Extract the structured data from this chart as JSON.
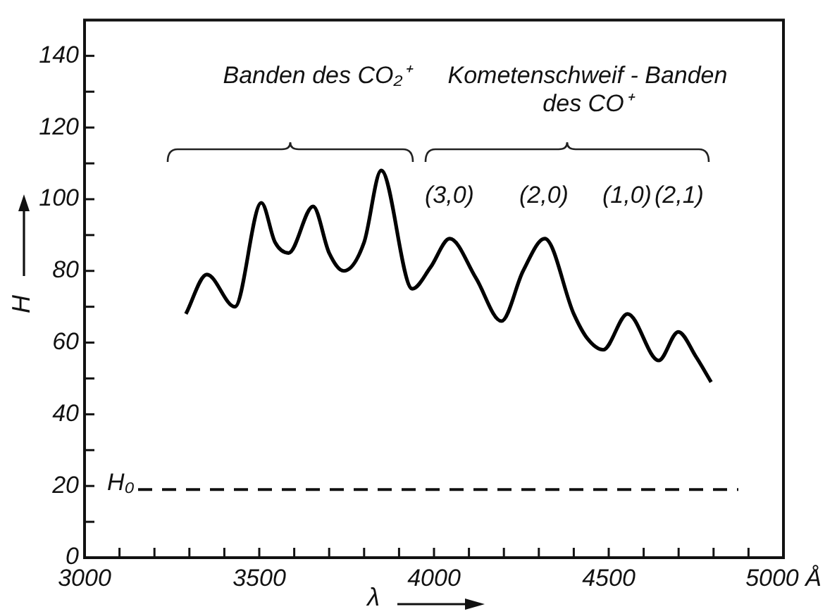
{
  "chart_data": {
    "type": "line",
    "xlabel": "λ",
    "ylabel": "H",
    "x": [
      3290,
      3350,
      3430,
      3506,
      3545,
      3584,
      3654,
      3700,
      3742,
      3800,
      3849,
      3938,
      3990,
      4045,
      4120,
      4193,
      4255,
      4317,
      4400,
      4440,
      4484,
      4554,
      4643,
      4699,
      4750,
      4793
    ],
    "values": [
      68,
      79,
      70,
      99,
      88,
      85,
      98,
      85,
      80,
      88,
      108,
      75,
      81,
      89,
      78,
      66,
      80,
      89,
      68,
      61,
      58,
      68,
      55,
      63,
      56,
      49
    ],
    "color": "#000000",
    "xlim": [
      3000,
      5000
    ],
    "xticks": [
      3000,
      {
        "value": 3100,
        "label": null
      },
      {
        "value": 3200,
        "label": null
      },
      {
        "value": 3300,
        "label": null
      },
      {
        "value": 3400,
        "label": null
      },
      3500,
      {
        "value": 3600,
        "label": null
      },
      {
        "value": 3700,
        "label": null
      },
      {
        "value": 3800,
        "label": null
      },
      {
        "value": 3900,
        "label": null
      },
      4000,
      {
        "value": 4100,
        "label": null
      },
      {
        "value": 4200,
        "label": null
      },
      {
        "value": 4300,
        "label": null
      },
      {
        "value": 4400,
        "label": null
      },
      4500,
      {
        "value": 4600,
        "label": null
      },
      {
        "value": 4700,
        "label": null
      },
      {
        "value": 4800,
        "label": null
      },
      {
        "value": 4900,
        "label": null
      },
      {
        "value": 5000,
        "label": "5000 Å"
      }
    ],
    "ylim": [
      0,
      150
    ],
    "yticks": [
      0,
      {
        "value": 10,
        "label": null
      },
      20,
      {
        "value": 30,
        "label": null
      },
      40,
      {
        "value": 50,
        "label": null
      },
      60,
      {
        "value": 70,
        "label": null
      },
      80,
      {
        "value": 90,
        "label": null
      },
      100,
      {
        "value": 110,
        "label": null
      },
      120,
      {
        "value": 130,
        "label": null
      },
      140
    ],
    "ref_lines": [
      {
        "axis": "y",
        "value": 19,
        "label": "H₀",
        "line_style": "dashed"
      }
    ],
    "annotations": [
      "Banden des CO₂⁺",
      "Kometenschweif - Banden\ndes CO⁺",
      "(3,0)",
      "(2,0)",
      "(1,0)",
      "(2,1)"
    ],
    "marker": "none",
    "line_style": "solid",
    "grid": false,
    "legend": false
  }
}
